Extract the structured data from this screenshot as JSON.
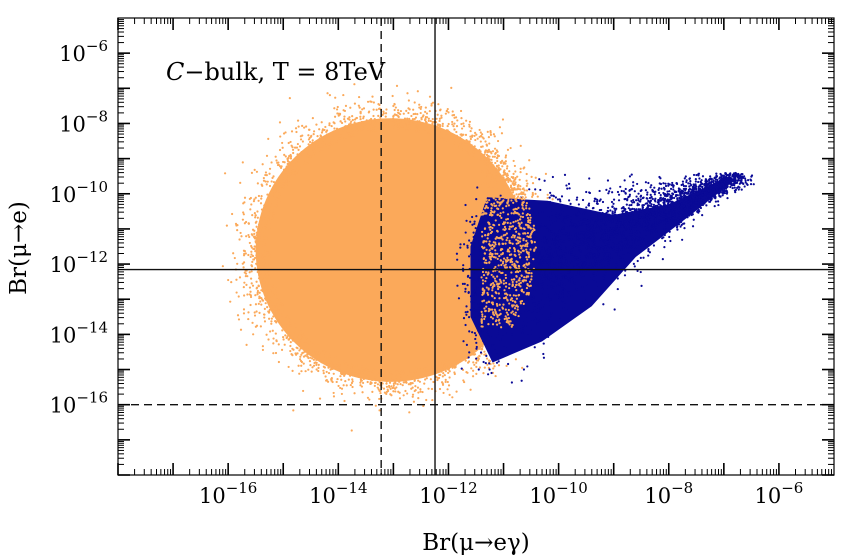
{
  "chart_data": {
    "type": "scatter",
    "title": "",
    "annotation": {
      "symbol": "C",
      "text": "−bulk, T = 8TeV"
    },
    "xlabel": "Br(μ→eγ)",
    "ylabel": "Br(μ→e)",
    "x_scale": "log",
    "y_scale": "log",
    "xlim": [
      1e-18,
      1e-05
    ],
    "ylim": [
      1e-18,
      1e-05
    ],
    "x_tick_labels": [
      {
        "value": 1e-16,
        "base": "10",
        "exp": "−16"
      },
      {
        "value": 1e-14,
        "base": "10",
        "exp": "−14"
      },
      {
        "value": 1e-12,
        "base": "10",
        "exp": "−12"
      },
      {
        "value": 1e-10,
        "base": "10",
        "exp": "−10"
      },
      {
        "value": 1e-08,
        "base": "10",
        "exp": "−8"
      },
      {
        "value": 1e-06,
        "base": "10",
        "exp": "−6"
      }
    ],
    "y_tick_labels": [
      {
        "value": 1e-06,
        "base": "10",
        "exp": "−6"
      },
      {
        "value": 1e-08,
        "base": "10",
        "exp": "−8"
      },
      {
        "value": 1e-10,
        "base": "10",
        "exp": "−10"
      },
      {
        "value": 1e-12,
        "base": "10",
        "exp": "−12"
      },
      {
        "value": 1e-14,
        "base": "10",
        "exp": "−14"
      },
      {
        "value": 1e-16,
        "base": "10",
        "exp": "−16"
      }
    ],
    "grid": false,
    "legend": "none",
    "reference_lines": [
      {
        "orientation": "vertical",
        "value": 5.7e-13,
        "style": "solid"
      },
      {
        "orientation": "vertical",
        "value": 6e-14,
        "style": "dashed"
      },
      {
        "orientation": "horizontal",
        "value": 7e-13,
        "style": "solid"
      },
      {
        "orientation": "horizontal",
        "value": 1e-16,
        "style": "dashed"
      }
    ],
    "series": [
      {
        "color": "#fba95a",
        "distribution": "dense cloud",
        "log10_x_range": [
          -16,
          -10.2
        ],
        "log10_y_range": [
          -16.3,
          -7.8
        ],
        "log10_center": [
          -13.0,
          -11.6
        ]
      },
      {
        "color": "#0a0a96",
        "distribution": "dense band",
        "log10_x_range": [
          -11.8,
          -6.6
        ],
        "log10_y_range": [
          -15.5,
          -9.4
        ],
        "log10_center": [
          -10.4,
          -12.2
        ]
      }
    ]
  }
}
